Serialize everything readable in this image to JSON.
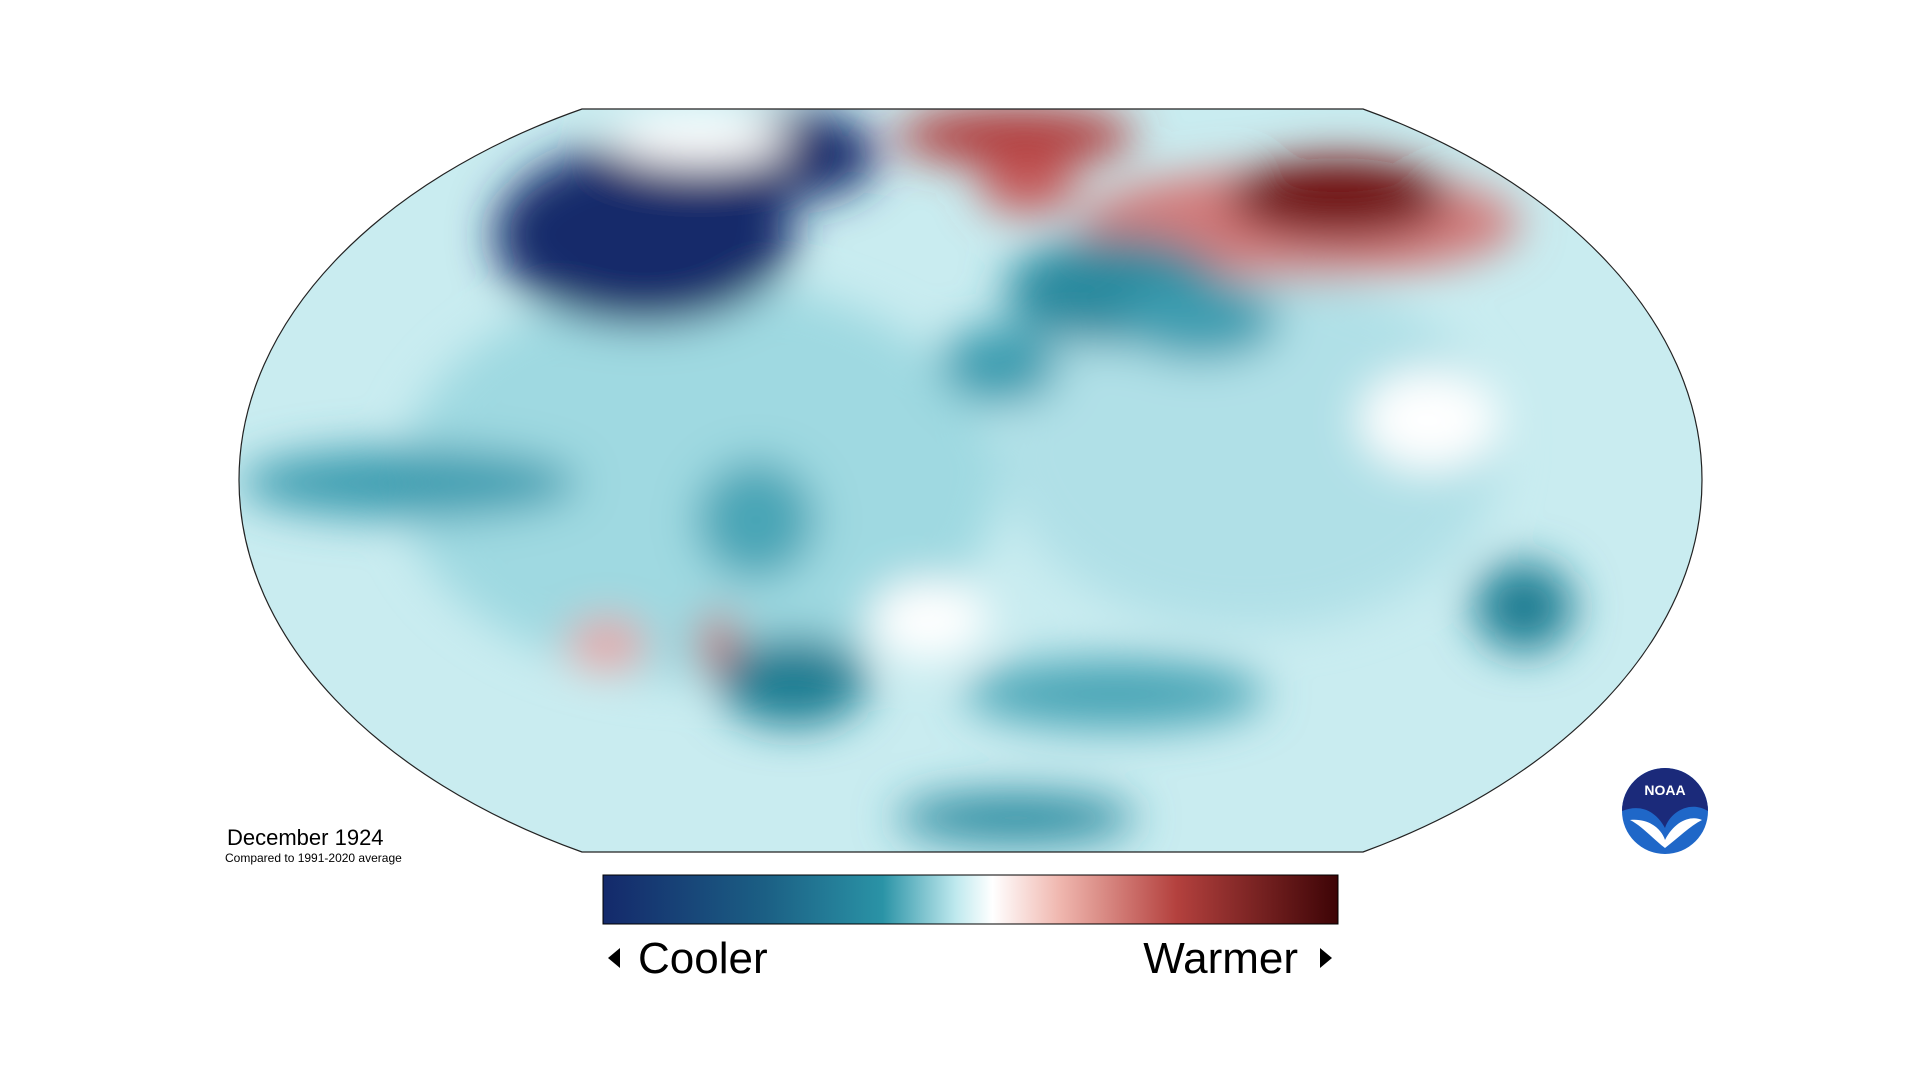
{
  "title": "December 1924",
  "subtitle": "Compared to 1991-2020 average",
  "legend": {
    "low": "Cooler",
    "high": "Warmer"
  },
  "logo": "NOAA"
}
